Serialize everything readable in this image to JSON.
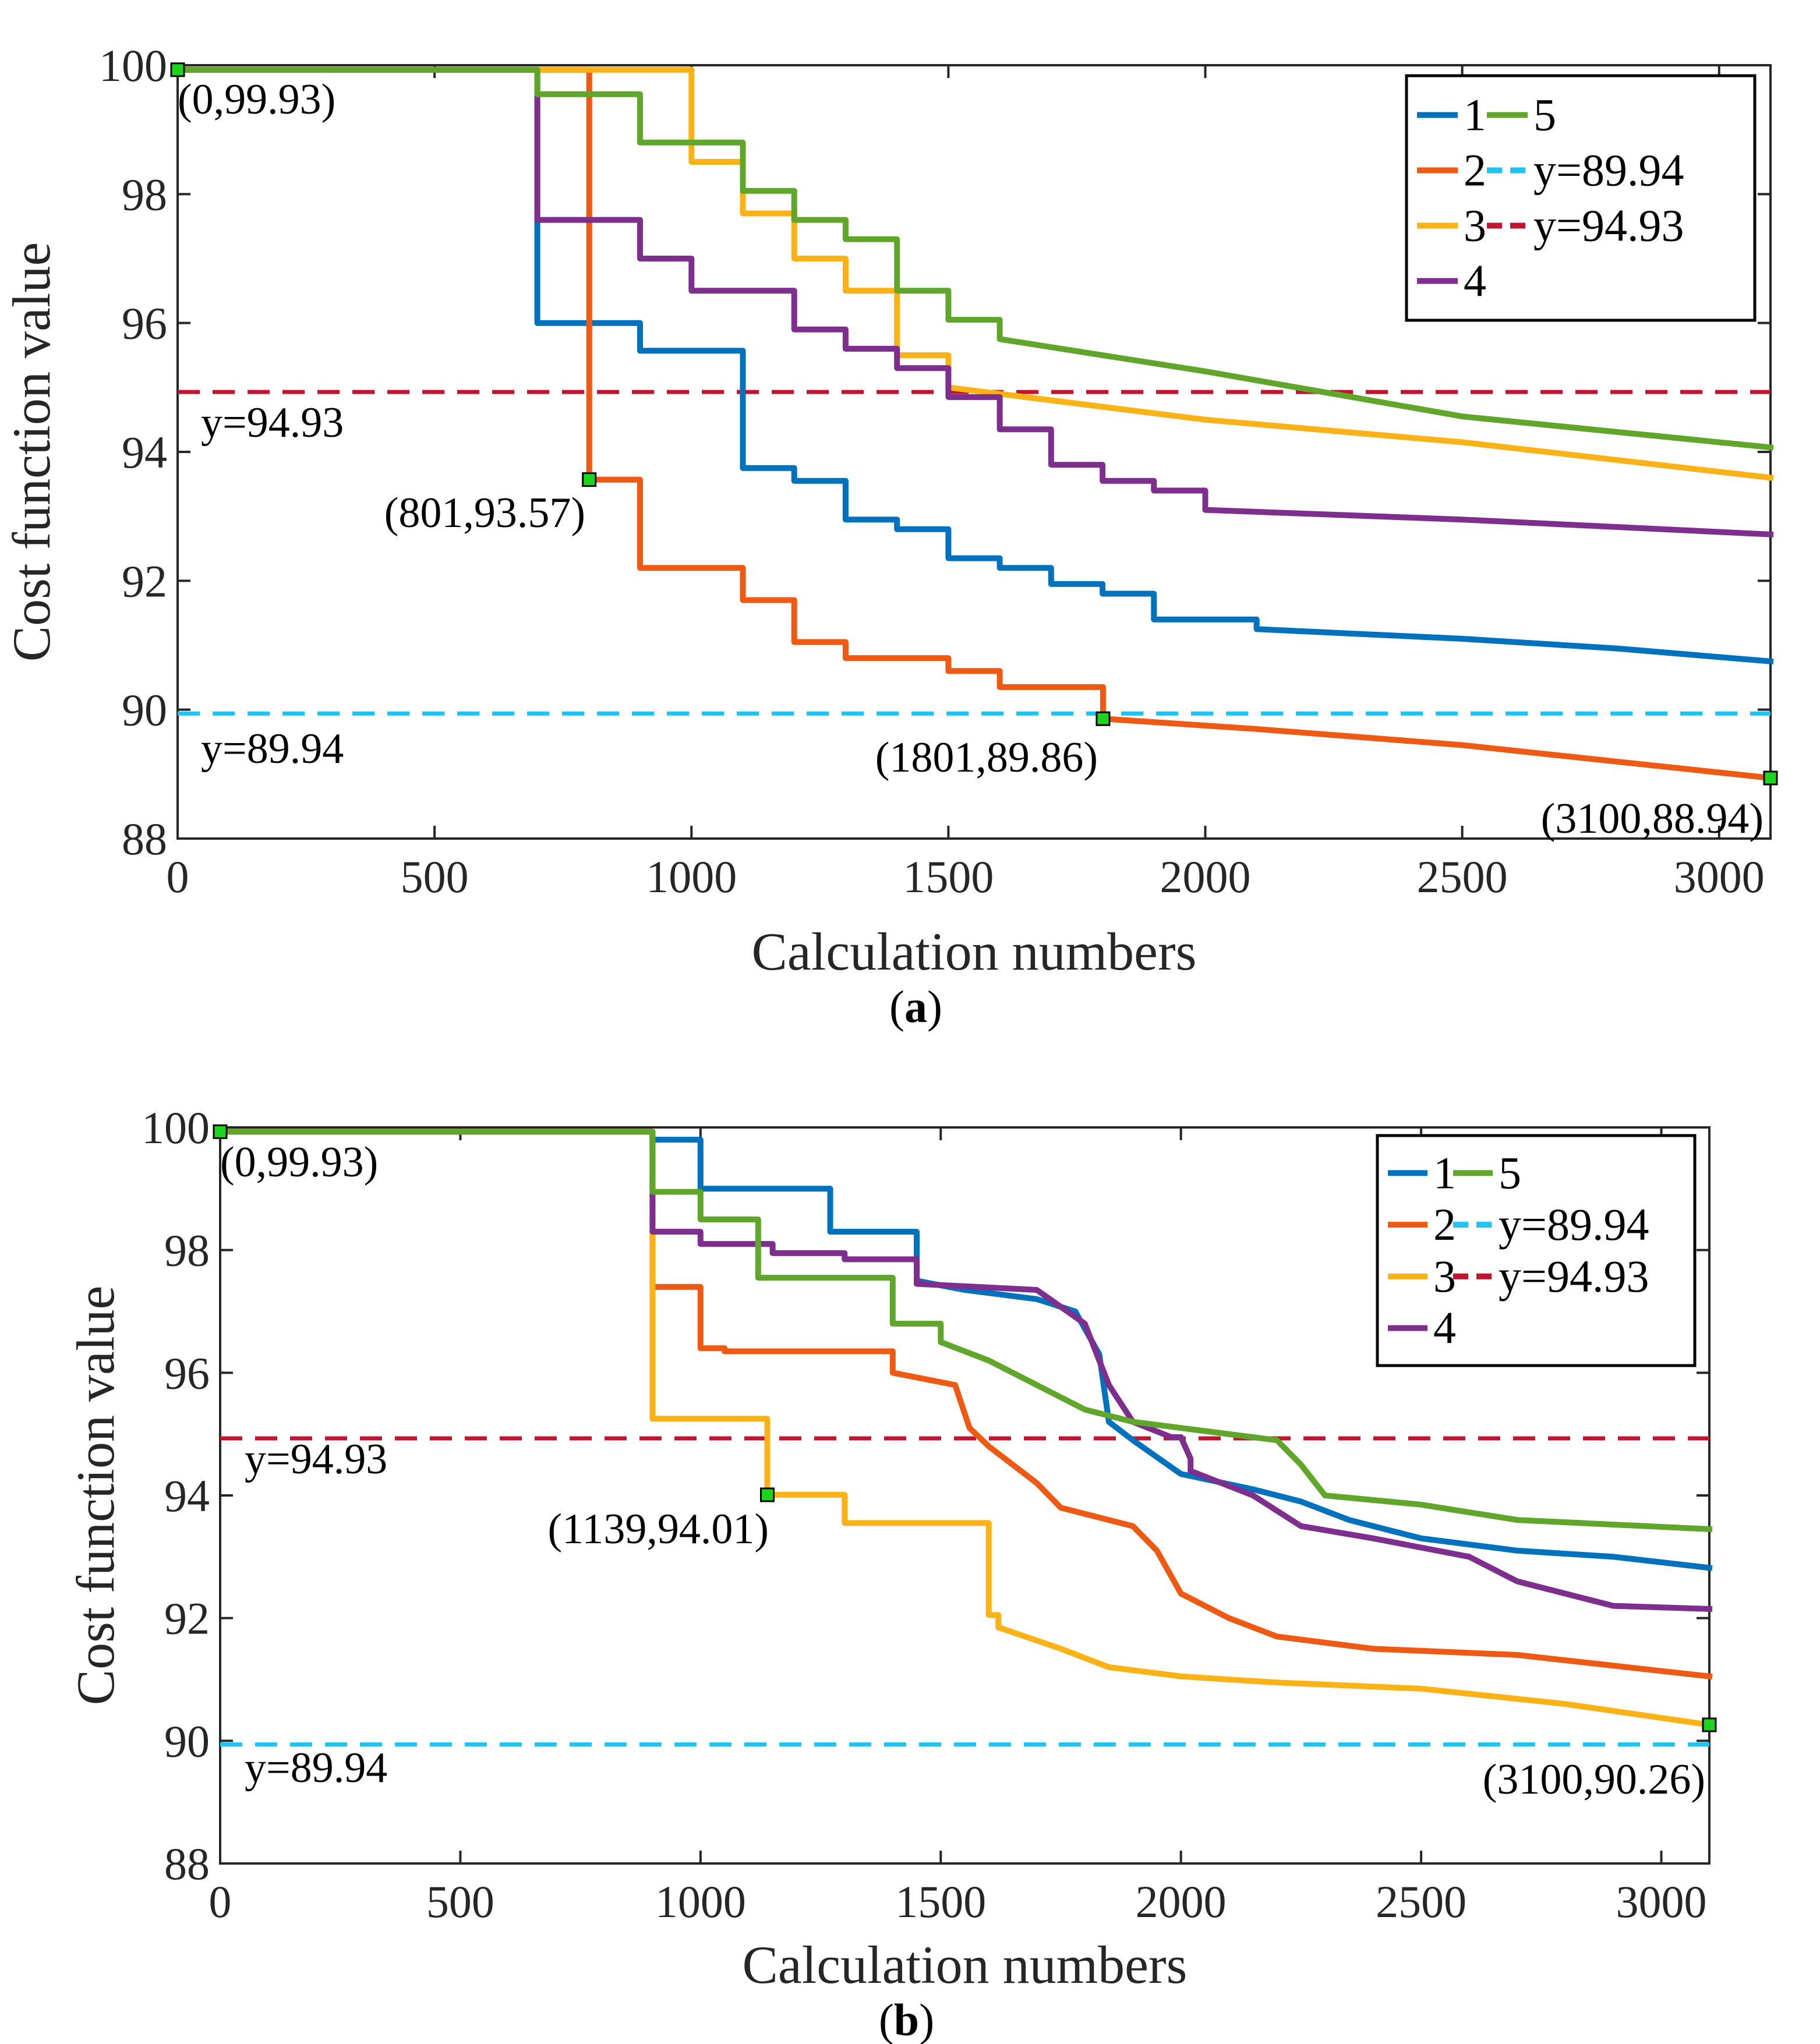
{
  "chart_data": [
    {
      "type": "line",
      "panel_label": "a",
      "xlabel": "Calculation numbers",
      "ylabel": "Cost function value",
      "xlim": [
        0,
        3100
      ],
      "ylim": [
        88,
        100
      ],
      "xticks": [
        0,
        500,
        1000,
        1500,
        2000,
        2500,
        3000
      ],
      "yticks": [
        88,
        90,
        92,
        94,
        96,
        98,
        100
      ],
      "grid": false,
      "legend_location": "top-right",
      "legend": [
        "1",
        "2",
        "3",
        "4",
        "5",
        "y=89.94",
        "y=94.93"
      ],
      "colors": {
        "1": "#0072BD",
        "2": "#EE5A13",
        "3": "#FBB216",
        "4": "#7E2F8E",
        "5": "#5FA62B",
        "ref_low": "#1FC2F0",
        "ref_high": "#C0142F",
        "marker": "#1ED41E"
      },
      "reference_lines": [
        {
          "name": "y=89.94",
          "y": 89.94,
          "label": "y=89.94",
          "color_key": "ref_low"
        },
        {
          "name": "y=94.93",
          "y": 94.93,
          "label": "y=94.93",
          "color_key": "ref_high"
        }
      ],
      "series": [
        {
          "name": "1",
          "color_key": "1",
          "x": [
            0,
            700,
            700,
            900,
            900,
            1100,
            1100,
            1200,
            1200,
            1300,
            1300,
            1400,
            1400,
            1500,
            1500,
            1600,
            1600,
            1700,
            1700,
            1800,
            1800,
            1900,
            1900,
            2100,
            2100,
            2500,
            2800,
            3100
          ],
          "y": [
            99.93,
            99.93,
            96.0,
            96.0,
            95.57,
            95.57,
            93.75,
            93.75,
            93.55,
            93.55,
            92.95,
            92.95,
            92.8,
            92.8,
            92.35,
            92.35,
            92.2,
            92.2,
            91.95,
            91.95,
            91.8,
            91.8,
            91.4,
            91.4,
            91.25,
            91.1,
            90.95,
            90.75
          ]
        },
        {
          "name": "2",
          "color_key": "2",
          "x": [
            0,
            801,
            801,
            900,
            900,
            1100,
            1100,
            1200,
            1200,
            1300,
            1300,
            1500,
            1500,
            1600,
            1600,
            1801,
            1801,
            2100,
            2500,
            3100
          ],
          "y": [
            99.93,
            99.93,
            93.57,
            93.57,
            92.2,
            92.2,
            91.7,
            91.7,
            91.05,
            91.05,
            90.8,
            90.8,
            90.6,
            90.6,
            90.35,
            90.35,
            89.86,
            89.7,
            89.45,
            88.94
          ]
        },
        {
          "name": "3",
          "color_key": "3",
          "x": [
            0,
            1000,
            1000,
            1100,
            1100,
            1200,
            1200,
            1300,
            1300,
            1400,
            1400,
            1500,
            1500,
            2000,
            2500,
            3100
          ],
          "y": [
            99.93,
            99.93,
            98.5,
            98.5,
            97.7,
            97.7,
            97.0,
            97.0,
            96.5,
            96.5,
            95.5,
            95.5,
            95.0,
            94.5,
            94.15,
            93.6
          ]
        },
        {
          "name": "4",
          "color_key": "4",
          "x": [
            0,
            700,
            700,
            900,
            900,
            1000,
            1000,
            1200,
            1200,
            1300,
            1300,
            1400,
            1400,
            1500,
            1500,
            1600,
            1600,
            1700,
            1700,
            1800,
            1800,
            1900,
            1900,
            2000,
            2000,
            2500,
            3100
          ],
          "y": [
            99.93,
            99.93,
            97.6,
            97.6,
            97.0,
            97.0,
            96.5,
            96.5,
            95.9,
            95.9,
            95.6,
            95.6,
            95.3,
            95.3,
            94.85,
            94.85,
            94.35,
            94.35,
            93.8,
            93.8,
            93.55,
            93.55,
            93.4,
            93.4,
            93.1,
            92.95,
            92.72
          ]
        },
        {
          "name": "5",
          "color_key": "5",
          "x": [
            0,
            700,
            700,
            900,
            900,
            1100,
            1100,
            1200,
            1200,
            1300,
            1300,
            1400,
            1400,
            1500,
            1500,
            1600,
            1600,
            2000,
            2500,
            3100
          ],
          "y": [
            99.93,
            99.93,
            99.55,
            99.55,
            98.8,
            98.8,
            98.05,
            98.05,
            97.6,
            97.6,
            97.3,
            97.3,
            96.5,
            96.5,
            96.05,
            96.05,
            95.75,
            95.25,
            94.55,
            94.07
          ]
        }
      ],
      "markers": [
        {
          "x": 0,
          "y": 99.93,
          "label": "(0,99.93)"
        },
        {
          "x": 801,
          "y": 93.57,
          "label": "(801,93.57)"
        },
        {
          "x": 1801,
          "y": 89.86,
          "label": "(1801,89.86)"
        },
        {
          "x": 3100,
          "y": 88.94,
          "label": "(3100,88.94)"
        }
      ]
    },
    {
      "type": "line",
      "panel_label": "b",
      "xlabel": "Calculation numbers",
      "ylabel": "Cost function value",
      "xlim": [
        0,
        3100
      ],
      "ylim": [
        88,
        100
      ],
      "xticks": [
        0,
        500,
        1000,
        1500,
        2000,
        2500,
        3000
      ],
      "yticks": [
        88,
        90,
        92,
        94,
        96,
        98,
        100
      ],
      "grid": false,
      "legend_location": "top-right",
      "legend": [
        "1",
        "2",
        "3",
        "4",
        "5",
        "y=89.94",
        "y=94.93"
      ],
      "colors": {
        "1": "#0072BD",
        "2": "#EE5A13",
        "3": "#FBB216",
        "4": "#7E2F8E",
        "5": "#5FA62B",
        "ref_low": "#1FC2F0",
        "ref_high": "#C0142F",
        "marker": "#1ED41E"
      },
      "reference_lines": [
        {
          "name": "y=89.94",
          "y": 89.94,
          "label": "y=89.94",
          "color_key": "ref_low"
        },
        {
          "name": "y=94.93",
          "y": 94.93,
          "label": "y=94.93",
          "color_key": "ref_high"
        }
      ],
      "series": [
        {
          "name": "1",
          "color_key": "1",
          "x": [
            0,
            900,
            900,
            1000,
            1000,
            1270,
            1270,
            1450,
            1450,
            1550,
            1700,
            1780,
            1830,
            1850,
            1900,
            2000,
            2150,
            2250,
            2350,
            2500,
            2700,
            2900,
            3100
          ],
          "y": [
            99.93,
            99.93,
            99.8,
            99.8,
            99.0,
            99.0,
            98.3,
            98.3,
            97.5,
            97.35,
            97.2,
            97.0,
            96.3,
            95.2,
            94.9,
            94.35,
            94.1,
            93.9,
            93.6,
            93.3,
            93.1,
            93.0,
            92.82
          ]
        },
        {
          "name": "2",
          "color_key": "2",
          "x": [
            0,
            900,
            900,
            1000,
            1000,
            1050,
            1050,
            1400,
            1400,
            1530,
            1560,
            1600,
            1700,
            1750,
            1900,
            1950,
            2000,
            2100,
            2200,
            2400,
            2700,
            3100
          ],
          "y": [
            99.93,
            99.93,
            97.4,
            97.4,
            96.4,
            96.4,
            96.35,
            96.35,
            96.0,
            95.8,
            95.1,
            94.8,
            94.2,
            93.8,
            93.5,
            93.1,
            92.4,
            92.0,
            91.7,
            91.5,
            91.4,
            91.05
          ]
        },
        {
          "name": "3",
          "color_key": "3",
          "x": [
            0,
            900,
            900,
            1139,
            1139,
            1300,
            1300,
            1600,
            1600,
            1620,
            1620,
            1750,
            1850,
            2000,
            2200,
            2500,
            2800,
            3100
          ],
          "y": [
            99.93,
            99.93,
            95.25,
            95.25,
            94.01,
            94.01,
            93.55,
            93.55,
            92.05,
            92.05,
            91.85,
            91.5,
            91.2,
            91.05,
            90.95,
            90.85,
            90.6,
            90.26
          ]
        },
        {
          "name": "4",
          "color_key": "4",
          "x": [
            0,
            900,
            900,
            1000,
            1000,
            1150,
            1150,
            1300,
            1300,
            1450,
            1450,
            1700,
            1800,
            1850,
            1900,
            1980,
            2000,
            2020,
            2020,
            2150,
            2250,
            2400,
            2600,
            2700,
            2900,
            3100
          ],
          "y": [
            99.93,
            99.93,
            98.3,
            98.3,
            98.1,
            98.1,
            97.95,
            97.95,
            97.85,
            97.85,
            97.45,
            97.35,
            96.8,
            95.8,
            95.2,
            94.95,
            94.95,
            94.6,
            94.4,
            94.0,
            93.5,
            93.3,
            93.0,
            92.6,
            92.2,
            92.15
          ]
        },
        {
          "name": "5",
          "color_key": "5",
          "x": [
            0,
            900,
            900,
            1000,
            1000,
            1120,
            1120,
            1400,
            1400,
            1500,
            1500,
            1600,
            1700,
            1800,
            1900,
            2000,
            2200,
            2250,
            2300,
            2500,
            2700,
            3100
          ],
          "y": [
            99.93,
            99.93,
            98.95,
            98.95,
            98.5,
            98.5,
            97.55,
            97.55,
            96.8,
            96.8,
            96.5,
            96.2,
            95.8,
            95.4,
            95.2,
            95.1,
            94.9,
            94.5,
            94.0,
            93.85,
            93.6,
            93.45
          ]
        }
      ],
      "markers": [
        {
          "x": 0,
          "y": 99.93,
          "label": "(0,99.93)"
        },
        {
          "x": 1139,
          "y": 94.01,
          "label": "(1139,94.01)"
        },
        {
          "x": 3100,
          "y": 90.26,
          "label": "(3100,90.26)"
        }
      ]
    }
  ]
}
